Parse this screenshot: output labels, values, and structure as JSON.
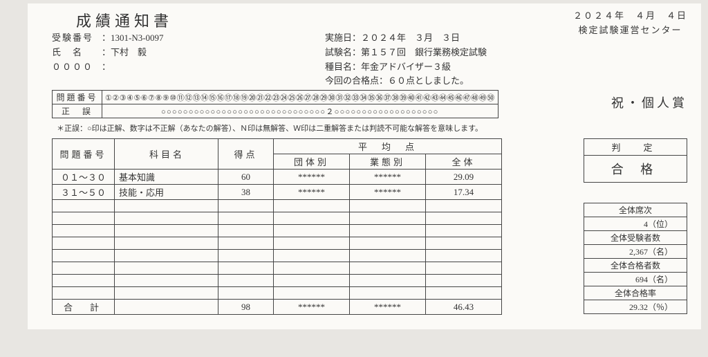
{
  "title": "成績通知書",
  "date": "２０２４年　４月　４日",
  "issuer": "検定試験運営センター",
  "applicant": {
    "number_label": "受験番号",
    "number": "1301-N3-0097",
    "name_label": "氏　名",
    "name": "下村　毅",
    "zero": "００００"
  },
  "exam": {
    "date_label": "実施日：",
    "date": "２０２４年　３月　３日",
    "name_label": "試験名：",
    "name": "第１５７回　銀行業務検定試験",
    "subject_label": "種目名：",
    "subject": "年金アドバイザー３級",
    "passmark_label": "今回の合格点：",
    "passmark": "６０点としました。"
  },
  "answer": {
    "row1_label": "問題番号",
    "row2_label": "正　誤",
    "row1_nums": "①②③④⑤⑥⑦⑧⑨⑩⑪⑫⑬⑭⑮⑯⑰⑱⑲⑳㉑㉒㉓㉔㉕㉖㉗㉘㉙㉚㉛㉜㉝㉞㉟㊱㊲㊳㊴㊵㊶㊷㊸㊹㊺㊻㊼㊽㊾㊿",
    "row2_marks": "○○○○○○○○○○○○○○○○○○○○○○○○○○○○○○２○○○○○○○○○○○○○○○○○○○"
  },
  "legend": "＊正誤：○印は正解、数字は不正解（あなたの解答）、Ｎ印は無解答、Ｗ印は二重解答または判読不可能な解答を意味します。",
  "prize": "祝・個人賞",
  "score": {
    "hdr_q": "問題番号",
    "hdr_subject": "科目名",
    "hdr_score": "得点",
    "hdr_avg": "平　均　点",
    "hdr_group": "団体別",
    "hdr_ind": "業態別",
    "hdr_all": "全体",
    "rows": [
      {
        "q": "０１～３０",
        "subject": "基本知識",
        "score": "60",
        "group": "******",
        "ind": "******",
        "all": "29.09"
      },
      {
        "q": "３１～５０",
        "subject": "技能・応用",
        "score": "38",
        "group": "******",
        "ind": "******",
        "all": "17.34"
      }
    ],
    "total_label": "合　計",
    "total_score": "98",
    "total_group": "******",
    "total_ind": "******",
    "total_all": "46.43"
  },
  "result": {
    "label": "判　定",
    "value": "合 格"
  },
  "stats": {
    "rank_label": "全体席次",
    "rank": "4（位）",
    "examinees_label": "全体受験者数",
    "examinees": "2,367（名）",
    "passers_label": "全体合格者数",
    "passers": "694（名）",
    "rate_label": "全体合格率",
    "rate": "29.32（％）"
  }
}
